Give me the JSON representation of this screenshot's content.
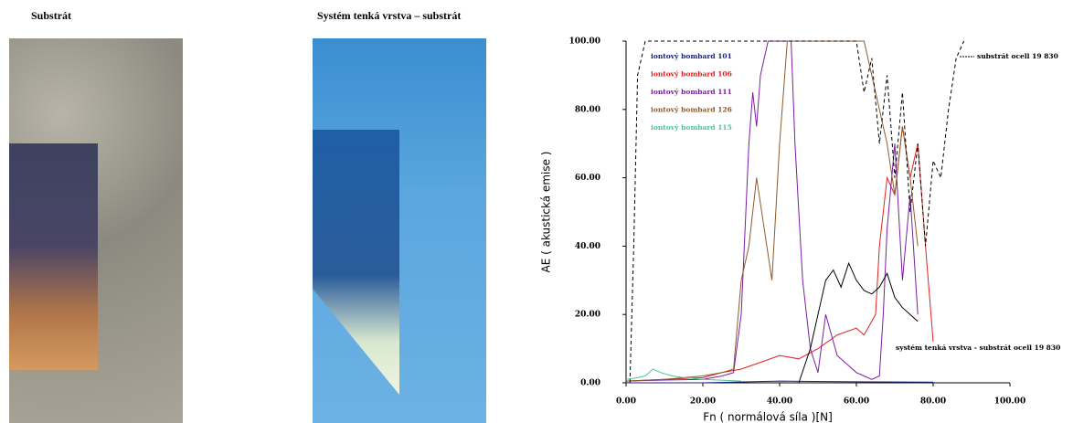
{
  "images": [
    {
      "caption": "Substrát"
    },
    {
      "caption": "Systém tenká vrstva – substrát"
    }
  ],
  "chart_data": {
    "type": "line",
    "x_label": "Fn ( normálová síla )[N]",
    "y_label": "AE ( akustická emise )",
    "xlim": [
      0,
      100
    ],
    "ylim": [
      0,
      100
    ],
    "xticks": [
      {
        "value": 0,
        "label": "0.00"
      },
      {
        "value": 20,
        "label": "20.00"
      },
      {
        "value": 40,
        "label": "40.00"
      },
      {
        "value": 60,
        "label": "60.00"
      },
      {
        "value": 80,
        "label": "80.00"
      },
      {
        "value": 100,
        "label": "100.00"
      }
    ],
    "yticks": [
      {
        "value": 0,
        "label": "0.00"
      },
      {
        "value": 20,
        "label": "20.00"
      },
      {
        "value": 40,
        "label": "40.00"
      },
      {
        "value": 60,
        "label": "60.00"
      },
      {
        "value": 80,
        "label": "80.00"
      },
      {
        "value": 100,
        "label": "100.00"
      }
    ],
    "series": [
      {
        "name": "iontový bombard 101",
        "color": "#1a237e",
        "x": [
          0,
          20,
          40,
          60,
          80
        ],
        "values": [
          0,
          0,
          0.5,
          0.3,
          0.2
        ]
      },
      {
        "name": "iontový bombard 106",
        "color": "#e02020",
        "x": [
          0,
          10,
          20,
          25,
          30,
          35,
          40,
          45,
          50,
          55,
          60,
          62,
          65,
          66,
          68,
          70,
          72,
          74,
          76,
          78,
          80
        ],
        "values": [
          0.5,
          1,
          1.5,
          3,
          4,
          6,
          8,
          7,
          10,
          14,
          16,
          14,
          20,
          40,
          60,
          55,
          75,
          60,
          70,
          40,
          12
        ]
      },
      {
        "name": "iontový bombard 111",
        "color": "#7b1fa2",
        "x": [
          0,
          10,
          20,
          25,
          28,
          30,
          31,
          32,
          33,
          34,
          35,
          37,
          40,
          43,
          44,
          46,
          48,
          50,
          52,
          55,
          60,
          62,
          64,
          66,
          67,
          68,
          70,
          72,
          74,
          76
        ],
        "values": [
          0.5,
          0.8,
          1,
          2,
          3,
          20,
          45,
          70,
          85,
          75,
          90,
          100,
          100,
          100,
          70,
          30,
          10,
          3,
          20,
          8,
          3,
          2,
          1,
          2,
          20,
          45,
          70,
          30,
          55,
          20
        ]
      },
      {
        "name": "iontový bombard 126",
        "color": "#8d5a2b",
        "x": [
          0,
          10,
          20,
          25,
          28,
          30,
          32,
          34,
          36,
          38,
          40,
          42,
          44,
          46,
          48,
          50,
          55,
          60,
          62,
          64,
          66,
          68,
          70,
          72,
          74,
          76
        ],
        "values": [
          0.5,
          1,
          2,
          3,
          4,
          30,
          40,
          60,
          45,
          30,
          70,
          100,
          100,
          100,
          100,
          100,
          100,
          100,
          100,
          90,
          80,
          70,
          55,
          75,
          60,
          40
        ]
      },
      {
        "name": "iontový bombard 115",
        "color": "#4fc3a1",
        "x": [
          0,
          3,
          5,
          7,
          9,
          12,
          15,
          20,
          30
        ],
        "values": [
          1,
          1.5,
          2,
          4,
          3,
          2,
          1.5,
          1,
          0.5
        ]
      },
      {
        "name": "substrát ocell 19 830",
        "color": "#000000",
        "dashed": true,
        "x": [
          1,
          2,
          3,
          5,
          10,
          20,
          30,
          40,
          50,
          60,
          62,
          64,
          66,
          68,
          70,
          72,
          74,
          76,
          78,
          80,
          82,
          84,
          86,
          88
        ],
        "values": [
          0,
          40,
          90,
          100,
          100,
          100,
          100,
          100,
          100,
          100,
          85,
          95,
          70,
          90,
          60,
          85,
          50,
          70,
          40,
          65,
          60,
          80,
          95,
          100
        ]
      },
      {
        "name": "systém tenká vrstva - substrát ocell 19 830",
        "color": "#000000",
        "x": [
          45,
          48,
          50,
          52,
          54,
          56,
          58,
          60,
          62,
          64,
          66,
          68,
          70,
          72,
          74,
          76
        ],
        "values": [
          0,
          10,
          20,
          30,
          33,
          28,
          35,
          30,
          27,
          26,
          28,
          32,
          25,
          22,
          20,
          18
        ]
      }
    ]
  }
}
